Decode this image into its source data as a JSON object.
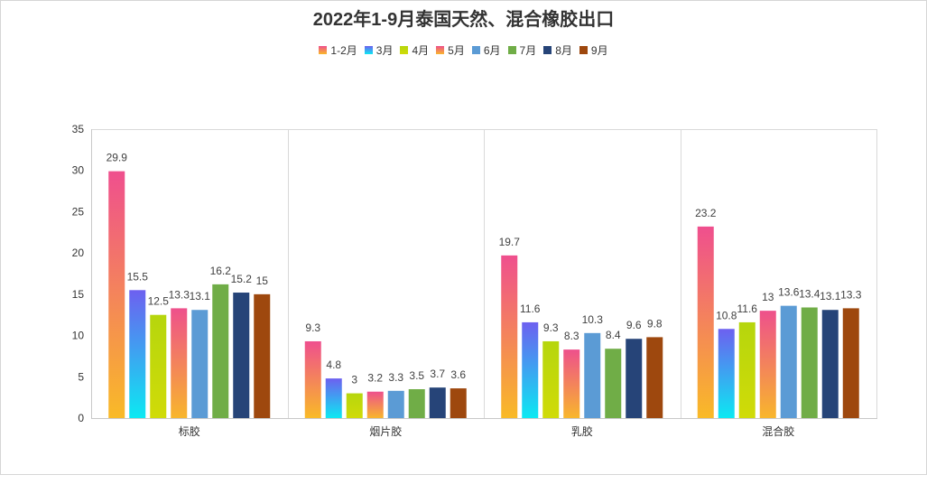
{
  "chart_data": {
    "type": "bar",
    "title": "2022年1-9月泰国天然、混合橡胶出口",
    "categories": [
      "标胶",
      "烟片胶",
      "乳胶",
      "混合胶"
    ],
    "series": [
      {
        "name": "1-2月",
        "values": [
          29.9,
          9.3,
          19.7,
          23.2
        ],
        "color": [
          "#ef4f8e",
          "#f9ba27"
        ]
      },
      {
        "name": "3月",
        "values": [
          15.5,
          4.8,
          11.6,
          10.8
        ],
        "color": [
          "#6d60f0",
          "#0ce9f2"
        ]
      },
      {
        "name": "4月",
        "values": [
          12.5,
          3,
          9.3,
          11.6
        ],
        "color": [
          "#b6d60d",
          "#d0db08"
        ]
      },
      {
        "name": "5月",
        "values": [
          13.3,
          3.2,
          8.3,
          13
        ],
        "color": [
          "#ee508c",
          "#f8b62c"
        ]
      },
      {
        "name": "6月",
        "values": [
          13.1,
          3.3,
          10.3,
          13.6
        ],
        "color": "#5b9bd5"
      },
      {
        "name": "7月",
        "values": [
          16.2,
          3.5,
          8.4,
          13.4
        ],
        "color": "#70ad47"
      },
      {
        "name": "8月",
        "values": [
          15.2,
          3.7,
          9.6,
          13.1
        ],
        "color": "#264478"
      },
      {
        "name": "9月",
        "values": [
          15,
          3.6,
          9.8,
          13.3
        ],
        "color": "#9e480e"
      }
    ],
    "ylim": [
      0,
      35
    ],
    "yticks": [
      0,
      5,
      10,
      15,
      20,
      25,
      30,
      35
    ],
    "legend": "top-center",
    "grid": false,
    "data_labels": true
  }
}
